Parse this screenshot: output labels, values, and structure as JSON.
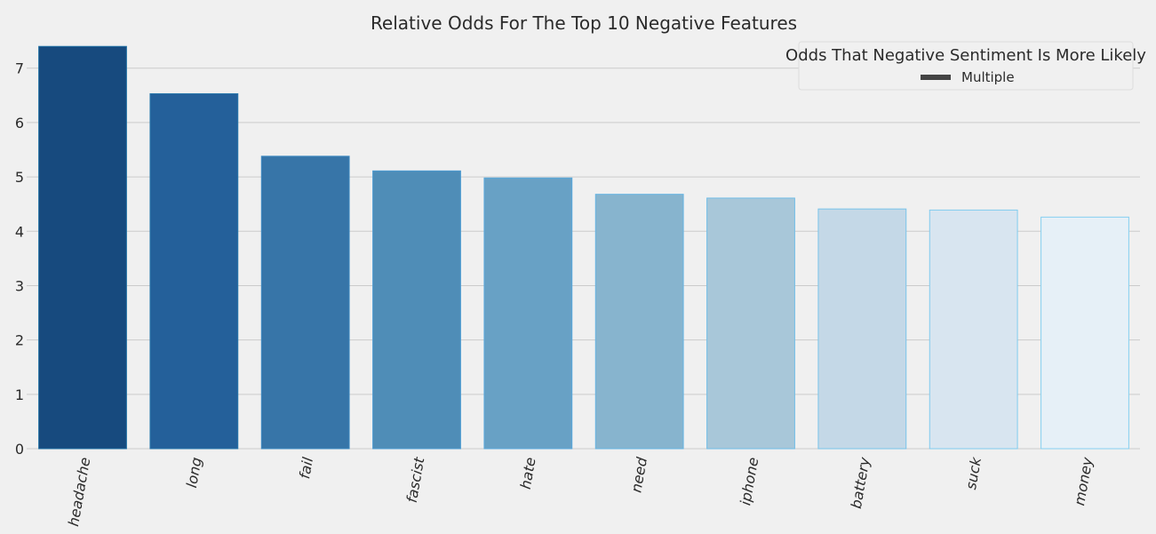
{
  "chart_data": {
    "type": "bar",
    "title": "Relative Odds For The Top 10 Negative Features",
    "xlabel": "",
    "ylabel": "",
    "categories": [
      "headache",
      "long",
      "fail",
      "fascist",
      "hate",
      "need",
      "iphone",
      "battery",
      "suck",
      "money"
    ],
    "values": [
      7.4,
      6.53,
      5.38,
      5.11,
      4.98,
      4.68,
      4.61,
      4.41,
      4.39,
      4.26
    ],
    "ylim": [
      0,
      7.6
    ],
    "yticks": [
      0,
      1,
      2,
      3,
      4,
      5,
      6,
      7
    ],
    "grid": "horizontal",
    "legend": {
      "title": "Odds That Negative Sentiment Is More Likely",
      "entries": [
        "Multiple"
      ],
      "placement": "top-right",
      "swatch_color": "#444444"
    },
    "colors": [
      "#174a7e",
      "#24609a",
      "#3775a8",
      "#4f8db7",
      "#68a1c5",
      "#87b4ce",
      "#a8c7d9",
      "#c4d8e7",
      "#d8e5f0",
      "#e6f0f7"
    ],
    "edge_colors": [
      "#1f6fa3",
      "#2a79ad",
      "#3d8ac2",
      "#4c9bd2",
      "#5aa9dd",
      "#66b4e3",
      "#70bde7",
      "#78c4ea",
      "#80cbee",
      "#86d0f0"
    ],
    "background_color": "#f0f0f0",
    "grid_color": "#cbcbcb"
  }
}
